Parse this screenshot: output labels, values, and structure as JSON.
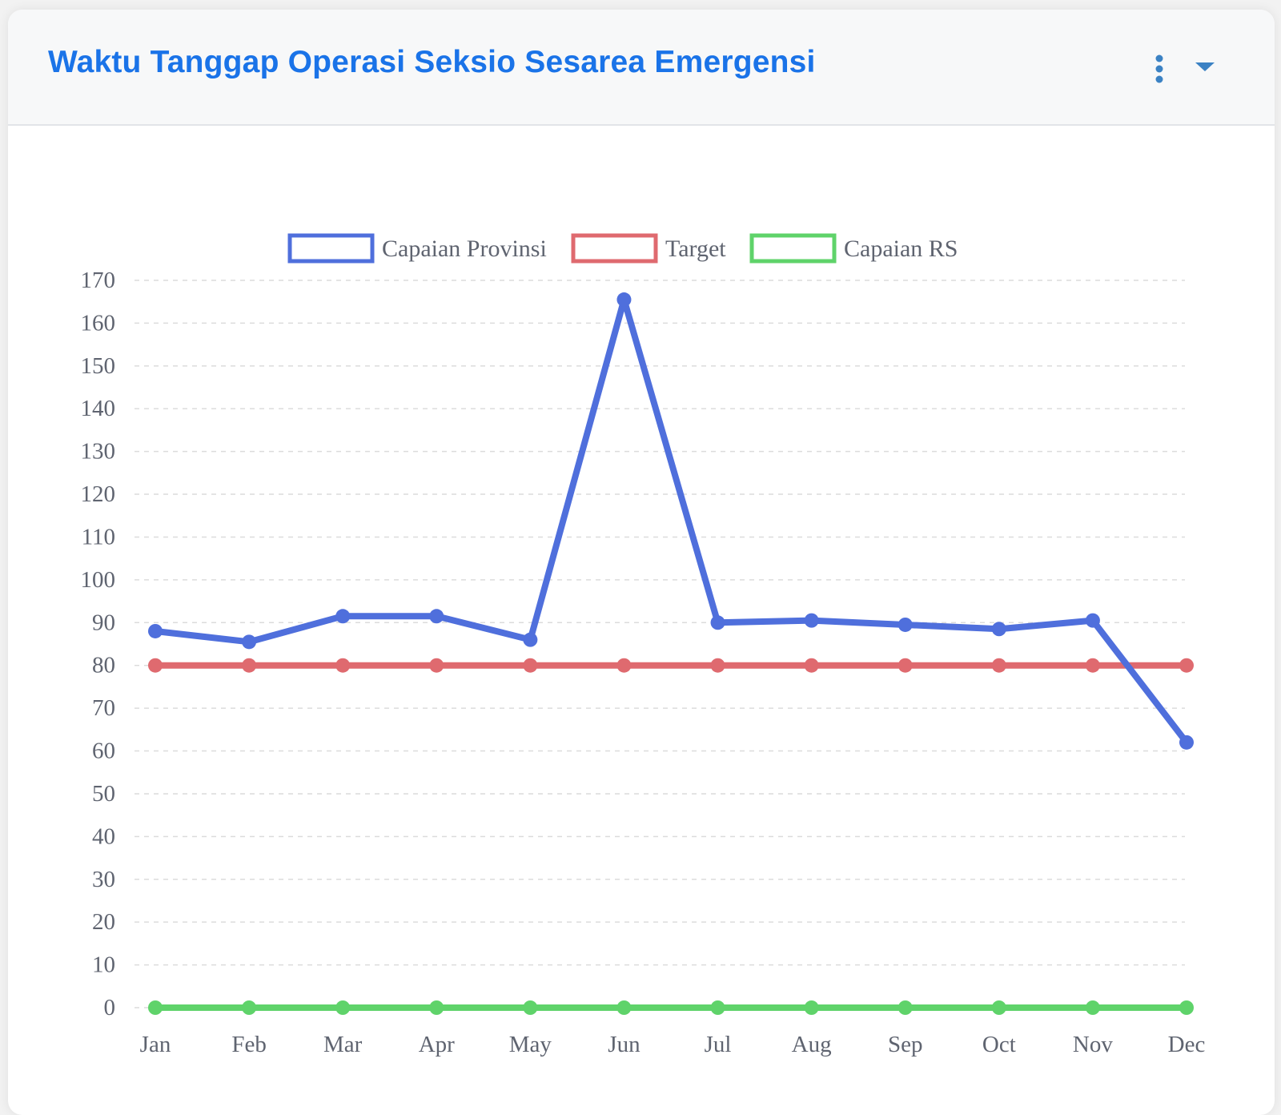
{
  "card": {
    "title": "Waktu Tanggap Operasi Seksio Sesarea Emergensi"
  },
  "icons": {
    "menu": "vertical-ellipsis-icon",
    "collapse": "caret-down-icon"
  },
  "colors": {
    "title": "#1a73e8",
    "icon": "#3b82c4",
    "provinsi": "#4f6fdc",
    "target": "#df6a6f",
    "rs": "#5fd36a",
    "grid": "#dcdcdc",
    "tick": "#5f6470"
  },
  "chart_data": {
    "type": "line",
    "categories": [
      "Jan",
      "Feb",
      "Mar",
      "Apr",
      "May",
      "Jun",
      "Jul",
      "Aug",
      "Sep",
      "Oct",
      "Nov",
      "Dec"
    ],
    "series": [
      {
        "name": "Capaian Provinsi",
        "color": "#4f6fdc",
        "values": [
          88,
          85.5,
          91.5,
          91.5,
          86,
          165.5,
          90,
          90.5,
          89.5,
          88.5,
          90.5,
          62
        ]
      },
      {
        "name": "Target",
        "color": "#df6a6f",
        "values": [
          80,
          80,
          80,
          80,
          80,
          80,
          80,
          80,
          80,
          80,
          80,
          80
        ]
      },
      {
        "name": "Capaian RS",
        "color": "#5fd36a",
        "values": [
          0,
          0,
          0,
          0,
          0,
          0,
          0,
          0,
          0,
          0,
          0,
          0
        ]
      }
    ],
    "yticks": [
      0,
      10,
      20,
      30,
      40,
      50,
      60,
      70,
      80,
      90,
      100,
      110,
      120,
      130,
      140,
      150,
      160,
      170
    ],
    "ylim": [
      0,
      170
    ],
    "grid": true,
    "legend_position": "top-center"
  }
}
